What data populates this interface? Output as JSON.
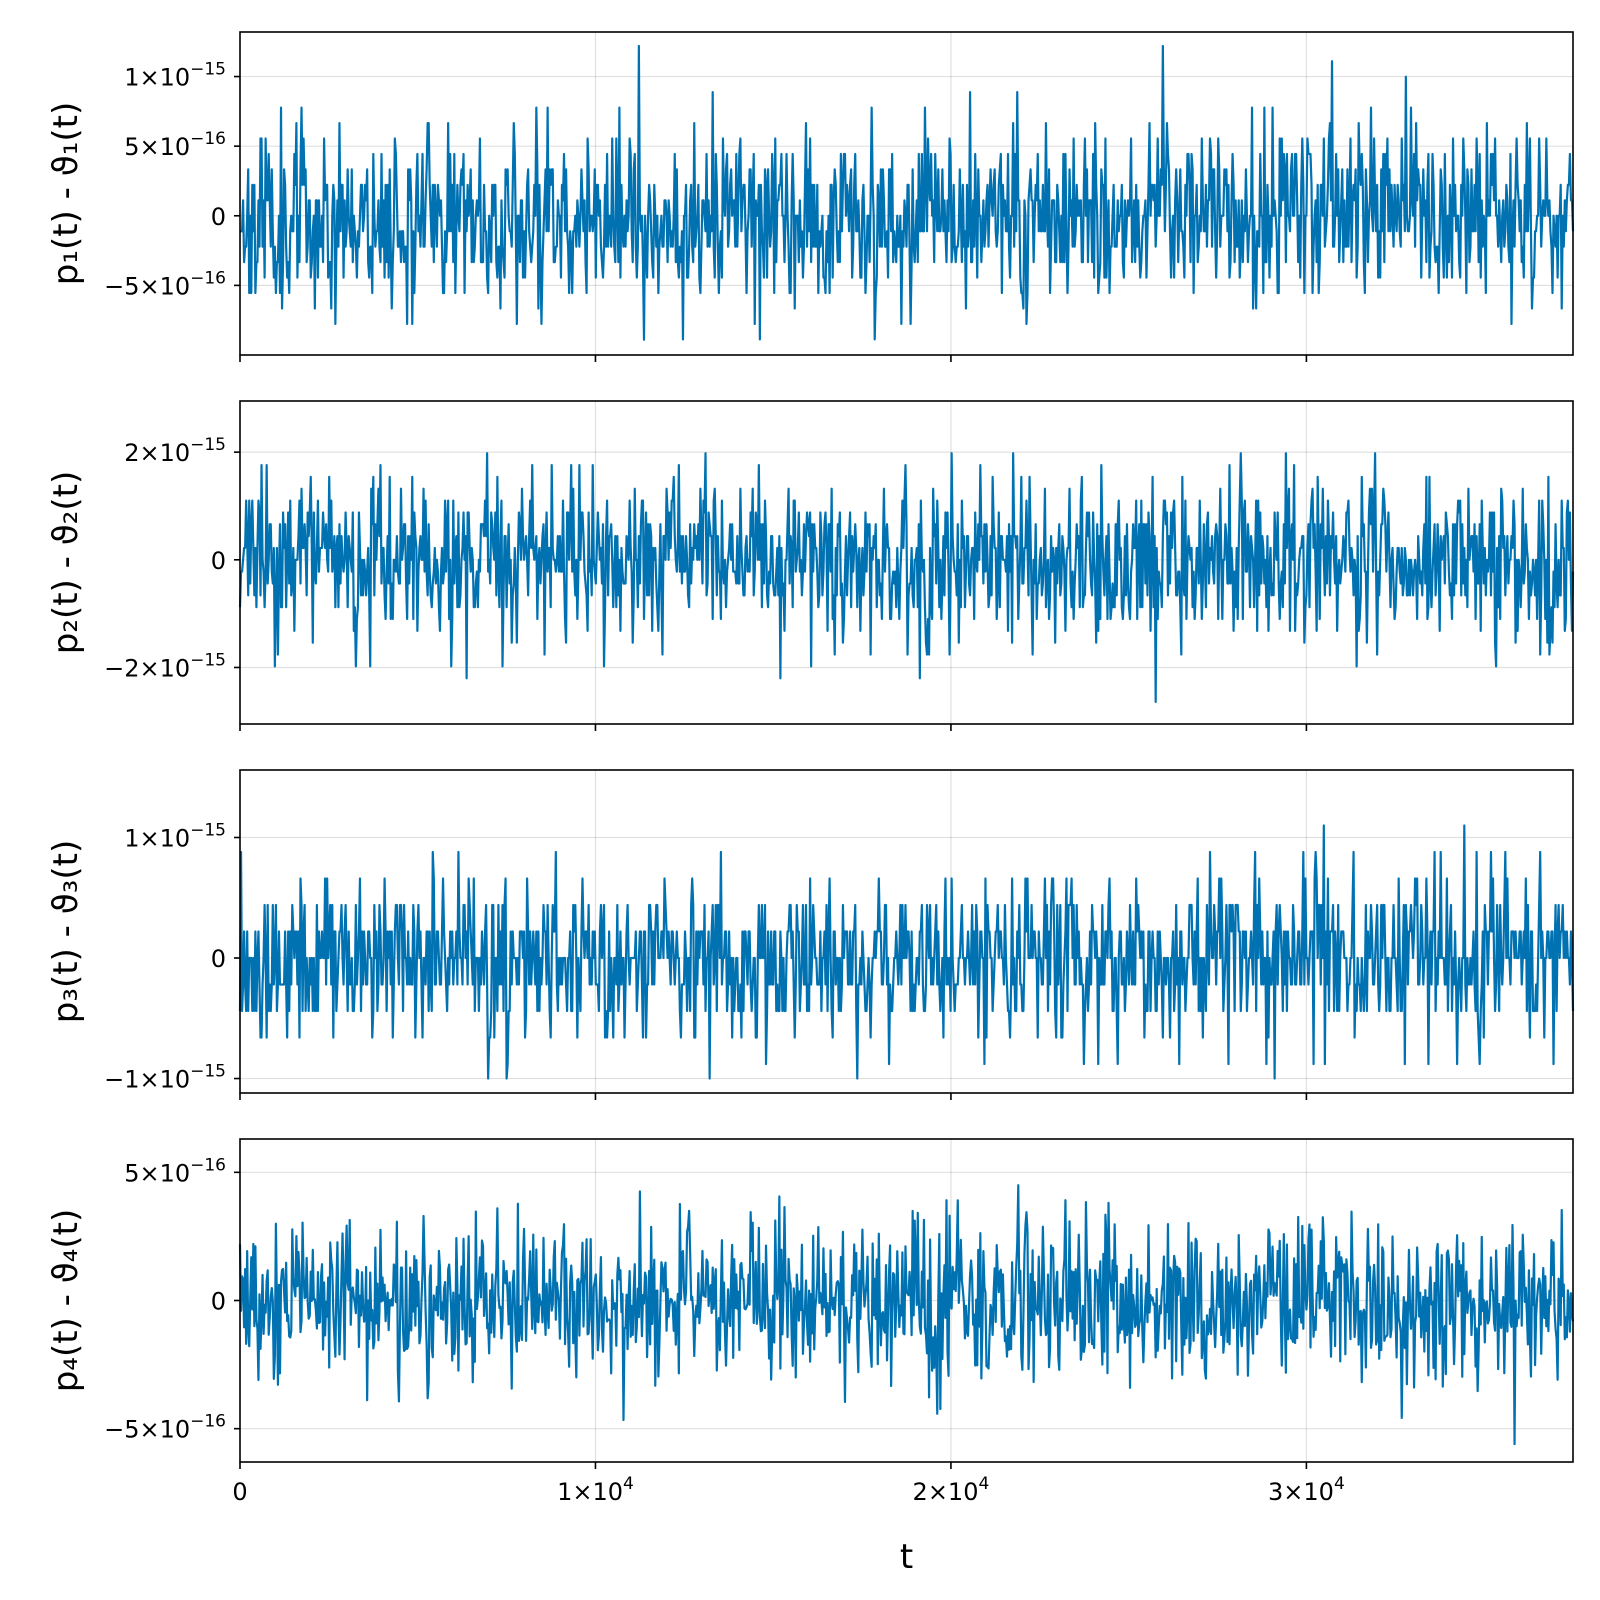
{
  "chart_data": {
    "type": "line",
    "shared_x_axis": {
      "label": "t",
      "range": [
        0,
        37500
      ],
      "ticks": [
        {
          "value": 0,
          "label": "0"
        },
        {
          "value": 10000,
          "label": "1×10",
          "exp": "4"
        },
        {
          "value": 20000,
          "label": "2×10",
          "exp": "4"
        },
        {
          "value": 30000,
          "label": "3×10",
          "exp": "4"
        }
      ]
    },
    "color": "#0072b2",
    "grid": true,
    "panels": [
      {
        "ylabel_base": "p₁(t) - ϑ₁(t)",
        "ylim": [
          -1e-15,
          1.32e-15
        ],
        "yticks": [
          {
            "value": 1e-15,
            "label": "1×10",
            "exp": "−15"
          },
          {
            "value": 5e-16,
            "label": "5×10",
            "exp": "−16"
          },
          {
            "value": 0,
            "label": "0",
            "exp": ""
          },
          {
            "value": -5e-16,
            "label": "−5×10",
            "exp": "−16"
          }
        ],
        "noise": {
          "sigma": 3.2e-16,
          "quantum": 1.11e-16,
          "clip": [
            -8.9e-16,
            1.22e-15
          ],
          "seed": 11
        },
        "series": [
          {
            "values_summary": "noise about 0",
            "min": -8.9e-16,
            "max": 1.22e-15
          }
        ]
      },
      {
        "ylabel_base": "p₂(t) - ϑ₂(t)",
        "ylim": [
          -3.05e-15,
          2.95e-15
        ],
        "yticks": [
          {
            "value": 2e-15,
            "label": "2×10",
            "exp": "−15"
          },
          {
            "value": 0,
            "label": "0",
            "exp": ""
          },
          {
            "value": -2e-15,
            "label": "−2×10",
            "exp": "−15"
          }
        ],
        "noise": {
          "sigma": 7.5e-16,
          "quantum": 2.2e-16,
          "clip": [
            -2.8e-15,
            2.65e-15
          ],
          "seed": 23
        },
        "series": [
          {
            "values_summary": "noise about 0",
            "min": -2.8e-15,
            "max": 2.65e-15
          }
        ]
      },
      {
        "ylabel_base": "p₃(t) - ϑ₃(t)",
        "ylim": [
          -1.12e-15,
          1.56e-15
        ],
        "yticks": [
          {
            "value": 1e-15,
            "label": "1×10",
            "exp": "−15"
          },
          {
            "value": 0,
            "label": "0",
            "exp": ""
          },
          {
            "value": -1e-15,
            "label": "−1×10",
            "exp": "−15"
          }
        ],
        "noise": {
          "sigma": 3.4e-16,
          "quantum": 2.2e-16,
          "clip": [
            -1e-15,
            1.43e-15
          ],
          "seed": 37
        },
        "series": [
          {
            "values_summary": "noise about 0",
            "min": -1e-15,
            "max": 1.43e-15
          }
        ]
      },
      {
        "ylabel_base": "p₄(t) - ϑ₄(t)",
        "ylim": [
          -6.3e-16,
          6.3e-16
        ],
        "yticks": [
          {
            "value": 5e-16,
            "label": "5×10",
            "exp": "−16"
          },
          {
            "value": 0,
            "label": "0",
            "exp": ""
          },
          {
            "value": -5e-16,
            "label": "−5×10",
            "exp": "−16"
          }
        ],
        "noise": {
          "sigma": 1.55e-16,
          "quantum": 0,
          "clip": [
            -5.6e-16,
            5.7e-16
          ],
          "seed": 53
        },
        "series": [
          {
            "values_summary": "noise about 0",
            "min": -5.6e-16,
            "max": 5.7e-16
          }
        ]
      }
    ]
  }
}
